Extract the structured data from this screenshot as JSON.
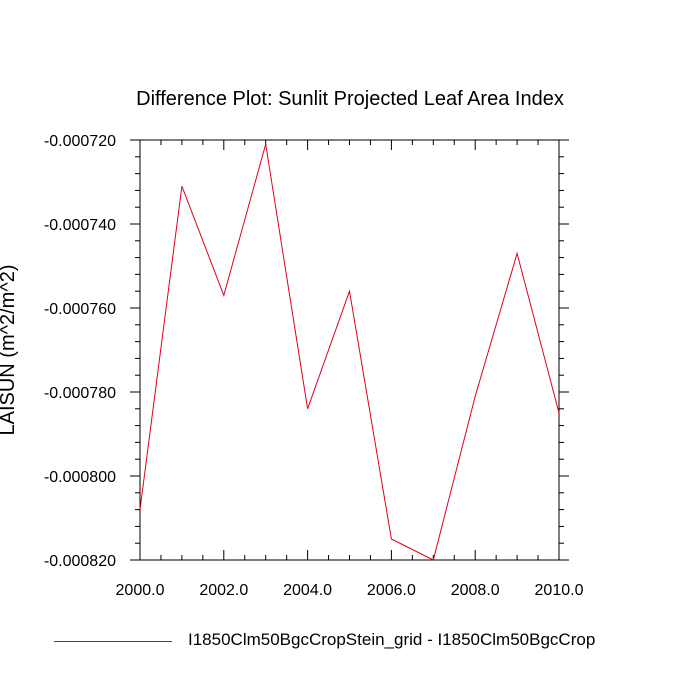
{
  "chart_data": {
    "type": "line",
    "title": "Difference Plot: Sunlit Projected Leaf Area Index",
    "xlabel": "",
    "ylabel": "LAISUN  (m^2/m^2)",
    "xlim": [
      2000,
      2010
    ],
    "ylim": [
      -0.00082,
      -0.00072
    ],
    "x_ticks": [
      "2000.0",
      "2002.0",
      "2004.0",
      "2006.0",
      "2008.0",
      "2010.0"
    ],
    "y_ticks": [
      "-0.000720",
      "-0.000740",
      "-0.000760",
      "-0.000780",
      "-0.000800",
      "-0.000820"
    ],
    "grid": false,
    "legend_position": "bottom",
    "series": [
      {
        "name": "I1850Clm50BgcCropStein_grid - I1850Clm50BgcCrop",
        "color": "#e0001c",
        "x": [
          2000,
          2001,
          2002,
          2003,
          2004,
          2005,
          2006,
          2007,
          2008,
          2009,
          2010
        ],
        "y": [
          -0.000808,
          -0.000731,
          -0.000757,
          -0.000721,
          -0.000784,
          -0.000756,
          -0.000815,
          -0.00082,
          -0.000781,
          -0.000747,
          -0.000785
        ]
      }
    ]
  }
}
